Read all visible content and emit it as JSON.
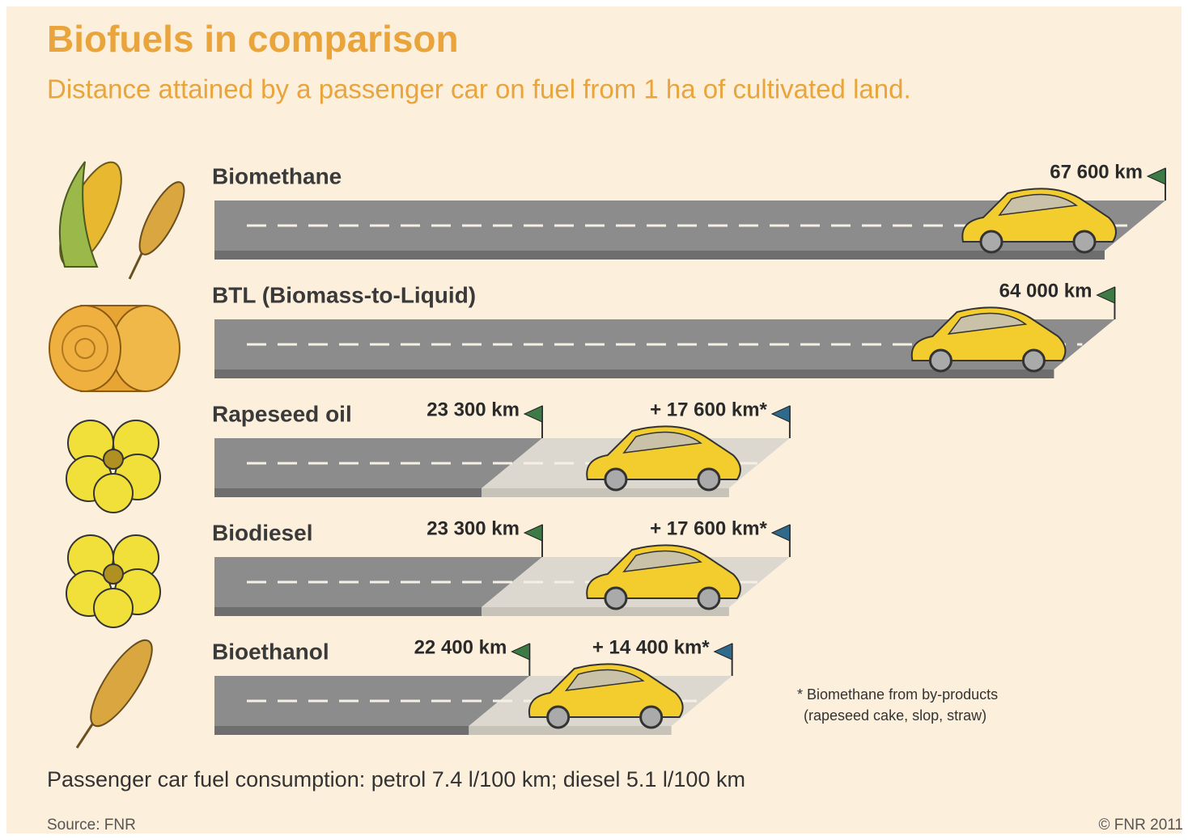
{
  "chart_data": {
    "type": "bar",
    "orientation": "horizontal",
    "stacked": true,
    "title": "Biofuels in comparison",
    "subtitle": "Distance attained by a passenger car on fuel from 1 ha of cultivated land.",
    "categories": [
      "Biomethane",
      "BTL (Biomass-to-Liquid)",
      "Rapeseed oil",
      "Biodiesel",
      "Bioethanol"
    ],
    "series": [
      {
        "color": "#8c8c8c",
        "flag_color": "#3d7a45",
        "values": [
          67600,
          64000,
          23300,
          23300,
          22400
        ],
        "value_labels": [
          "67 600 km",
          "64 000 km",
          "23 300 km",
          "23 300 km",
          "22 400 km"
        ]
      },
      {
        "color": "#dcd8cf",
        "flag_color": "#2f6a8c",
        "values": [
          null,
          null,
          17600,
          17600,
          14400
        ],
        "value_labels": [
          null,
          null,
          "+ 17 600 km*",
          "+ 17 600 km*",
          "+ 14 400 km*"
        ]
      }
    ],
    "footnote": [
      "* Biomethane from by-products",
      "(rapeseed cake, slop, straw)"
    ],
    "note": "Passenger car fuel consumption: petrol 7.4 l/100 km; diesel 5.1 l/100 km",
    "source": "Source: FNR",
    "copyright": "© FNR 2011"
  }
}
